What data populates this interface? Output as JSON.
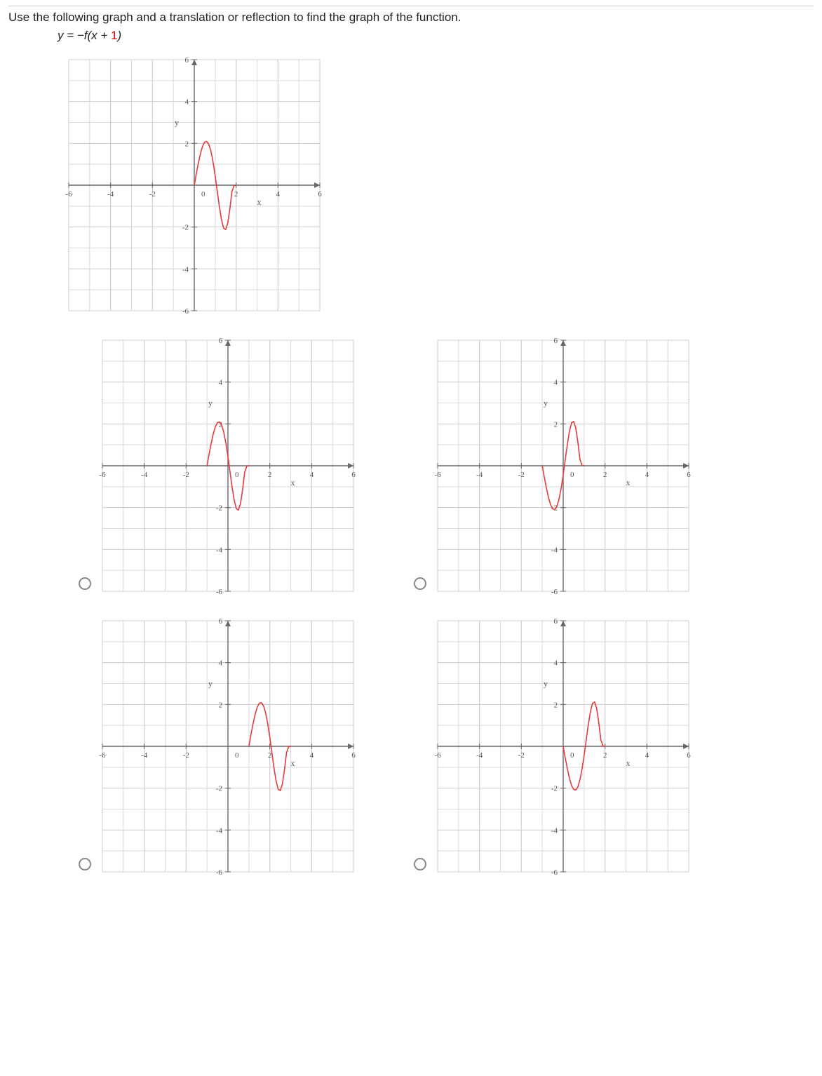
{
  "instruction": "Use the following graph and a translation or reflection to find the graph of the function.",
  "equation_lhs": "y = −f(x + ",
  "equation_one": "1",
  "equation_rhs": ")",
  "axis": {
    "xmin": -6,
    "xmax": 6,
    "ymin": -6,
    "ymax": 6,
    "xticks": [
      -6,
      -4,
      -2,
      0,
      2,
      4,
      6
    ],
    "yticks": [
      -6,
      -4,
      -2,
      0,
      2,
      4,
      6
    ],
    "xlabel": "x",
    "ylabel": "y",
    "grid_color": "#d9d9d9",
    "axis_color": "#666666",
    "tick_font_size": 11,
    "tick_color": "#555555",
    "curve_color": "#e63b3b",
    "curve_width": 1.6,
    "bg_color": "#ffffff"
  },
  "reference": {
    "size": 370,
    "curve_points": [
      [
        0.0,
        0.0
      ],
      [
        0.1,
        0.56
      ],
      [
        0.2,
        1.08
      ],
      [
        0.3,
        1.53
      ],
      [
        0.4,
        1.87
      ],
      [
        0.5,
        2.06
      ],
      [
        0.6,
        2.09
      ],
      [
        0.7,
        1.94
      ],
      [
        0.8,
        1.6
      ],
      [
        0.9,
        1.09
      ],
      [
        1.0,
        0.44
      ],
      [
        1.1,
        -0.3
      ],
      [
        1.2,
        -1.03
      ],
      [
        1.3,
        -1.65
      ],
      [
        1.4,
        -2.05
      ],
      [
        1.5,
        -2.12
      ],
      [
        1.6,
        -1.81
      ],
      [
        1.7,
        -1.14
      ],
      [
        1.8,
        -0.31
      ],
      [
        1.9,
        -0.02
      ],
      [
        2.0,
        0.0
      ]
    ]
  },
  "options": [
    {
      "id": "A",
      "size": 370,
      "curve_points": [
        [
          -1.0,
          0.0
        ],
        [
          -0.9,
          0.56
        ],
        [
          -0.8,
          1.08
        ],
        [
          -0.7,
          1.53
        ],
        [
          -0.6,
          1.87
        ],
        [
          -0.5,
          2.06
        ],
        [
          -0.4,
          2.09
        ],
        [
          -0.3,
          1.94
        ],
        [
          -0.2,
          1.6
        ],
        [
          -0.1,
          1.09
        ],
        [
          0.0,
          0.44
        ],
        [
          0.1,
          -0.3
        ],
        [
          0.2,
          -1.03
        ],
        [
          0.3,
          -1.65
        ],
        [
          0.4,
          -2.05
        ],
        [
          0.5,
          -2.12
        ],
        [
          0.6,
          -1.81
        ],
        [
          0.7,
          -1.14
        ],
        [
          0.8,
          -0.31
        ],
        [
          0.9,
          -0.02
        ],
        [
          1.0,
          0.0
        ]
      ]
    },
    {
      "id": "B",
      "size": 370,
      "curve_points": [
        [
          -1.0,
          0.0
        ],
        [
          -0.9,
          -0.56
        ],
        [
          -0.8,
          -1.08
        ],
        [
          -0.7,
          -1.53
        ],
        [
          -0.6,
          -1.87
        ],
        [
          -0.5,
          -2.06
        ],
        [
          -0.4,
          -2.09
        ],
        [
          -0.3,
          -1.94
        ],
        [
          -0.2,
          -1.6
        ],
        [
          -0.1,
          -1.09
        ],
        [
          0.0,
          -0.44
        ],
        [
          0.1,
          0.3
        ],
        [
          0.2,
          1.03
        ],
        [
          0.3,
          1.65
        ],
        [
          0.4,
          2.05
        ],
        [
          0.5,
          2.12
        ],
        [
          0.6,
          1.81
        ],
        [
          0.7,
          1.14
        ],
        [
          0.8,
          0.31
        ],
        [
          0.9,
          0.02
        ],
        [
          1.0,
          0.0
        ]
      ]
    },
    {
      "id": "C",
      "size": 370,
      "curve_points": [
        [
          1.0,
          0.0
        ],
        [
          1.1,
          0.56
        ],
        [
          1.2,
          1.08
        ],
        [
          1.3,
          1.53
        ],
        [
          1.4,
          1.87
        ],
        [
          1.5,
          2.06
        ],
        [
          1.6,
          2.09
        ],
        [
          1.7,
          1.94
        ],
        [
          1.8,
          1.6
        ],
        [
          1.9,
          1.09
        ],
        [
          2.0,
          0.44
        ],
        [
          2.1,
          -0.3
        ],
        [
          2.2,
          -1.03
        ],
        [
          2.3,
          -1.65
        ],
        [
          2.4,
          -2.05
        ],
        [
          2.5,
          -2.12
        ],
        [
          2.6,
          -1.81
        ],
        [
          2.7,
          -1.14
        ],
        [
          2.8,
          -0.31
        ],
        [
          2.9,
          -0.02
        ],
        [
          3.0,
          0.0
        ]
      ]
    },
    {
      "id": "D",
      "size": 370,
      "curve_points": [
        [
          0.0,
          0.0
        ],
        [
          0.1,
          -0.56
        ],
        [
          0.2,
          -1.08
        ],
        [
          0.3,
          -1.53
        ],
        [
          0.4,
          -1.87
        ],
        [
          0.5,
          -2.06
        ],
        [
          0.6,
          -2.09
        ],
        [
          0.7,
          -1.94
        ],
        [
          0.8,
          -1.6
        ],
        [
          0.9,
          -1.09
        ],
        [
          1.0,
          -0.44
        ],
        [
          1.1,
          0.3
        ],
        [
          1.2,
          1.03
        ],
        [
          1.3,
          1.65
        ],
        [
          1.4,
          2.05
        ],
        [
          1.5,
          2.12
        ],
        [
          1.6,
          1.81
        ],
        [
          1.7,
          1.14
        ],
        [
          1.8,
          0.31
        ],
        [
          1.9,
          0.02
        ],
        [
          2.0,
          0.0
        ]
      ]
    }
  ]
}
